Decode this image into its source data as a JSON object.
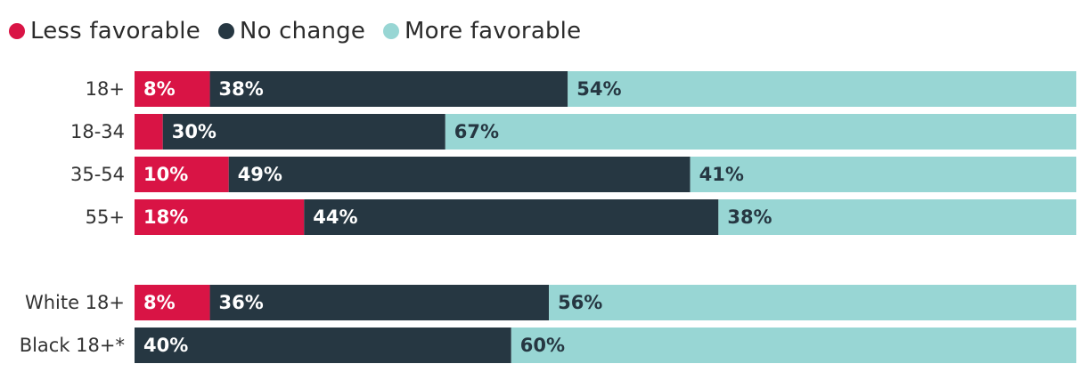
{
  "legend": {
    "items": [
      {
        "label": "Less favorable",
        "color": "#d91445"
      },
      {
        "label": "No change",
        "color": "#263742"
      },
      {
        "label": "More favorable",
        "color": "#98d6d4"
      }
    ]
  },
  "chart_data": {
    "type": "bar",
    "orientation": "horizontal",
    "stacked": true,
    "categories": [
      "18+",
      "18-34",
      "35-54",
      "55+",
      "White 18+",
      "Black 18+*"
    ],
    "series": [
      {
        "name": "Less favorable",
        "values": [
          8,
          3,
          10,
          18,
          8,
          0
        ],
        "labels": [
          "8%",
          "",
          "10%",
          "18%",
          "8%",
          ""
        ]
      },
      {
        "name": "No change",
        "values": [
          38,
          30,
          49,
          44,
          36,
          40
        ],
        "labels": [
          "38%",
          "30%",
          "49%",
          "44%",
          "36%",
          "40%"
        ]
      },
      {
        "name": "More favorable",
        "values": [
          54,
          67,
          41,
          38,
          56,
          60
        ],
        "labels": [
          "54%",
          "67%",
          "41%",
          "38%",
          "56%",
          "60%"
        ]
      }
    ],
    "colors": [
      "#d91445",
      "#263742",
      "#98d6d4"
    ],
    "label_colors": [
      "#ffffff",
      "#ffffff",
      "#263742"
    ],
    "xlim": [
      0,
      100
    ],
    "grid": false,
    "legend_position": "top-left"
  }
}
